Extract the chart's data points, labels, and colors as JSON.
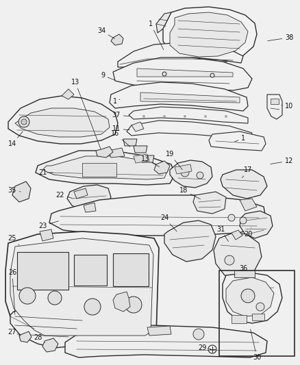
{
  "bg_color": "#f0f0f0",
  "line_color": "#2a2a2a",
  "label_color": "#111111",
  "label_fs": 7.0,
  "lw": 0.8
}
